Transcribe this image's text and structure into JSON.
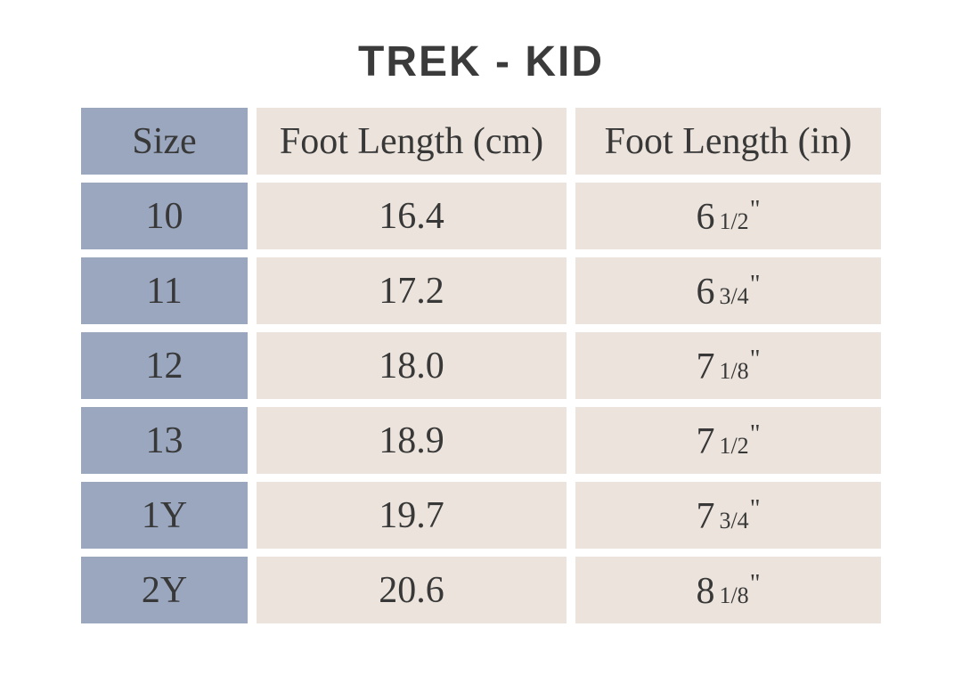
{
  "chart_data": {
    "type": "table",
    "title": "TREK - KID",
    "columns": [
      "Size",
      "Foot Length (cm)",
      "Foot Length (in)"
    ],
    "rows": [
      [
        "10",
        "16.4",
        "6 1/2\""
      ],
      [
        "11",
        "17.2",
        "6 3/4\""
      ],
      [
        "12",
        "18.0",
        "7 1/8\""
      ],
      [
        "13",
        "18.9",
        "7 1/2\""
      ],
      [
        "1Y",
        "19.7",
        "7 3/4\""
      ],
      [
        "2Y",
        "20.6",
        "8 1/8\""
      ]
    ]
  },
  "render": {
    "unit_mark": "\"",
    "inches": [
      {
        "whole": "6",
        "frac": "1/2"
      },
      {
        "whole": "6",
        "frac": "3/4"
      },
      {
        "whole": "7",
        "frac": "1/8"
      },
      {
        "whole": "7",
        "frac": "1/2"
      },
      {
        "whole": "7",
        "frac": "3/4"
      },
      {
        "whole": "8",
        "frac": "1/8"
      }
    ]
  },
  "colors": {
    "size_column_bg": "#9aa7bf",
    "data_column_bg": "#ece4dc",
    "text": "#383838",
    "title_text": "#3b3b3b",
    "background": "#ffffff"
  }
}
